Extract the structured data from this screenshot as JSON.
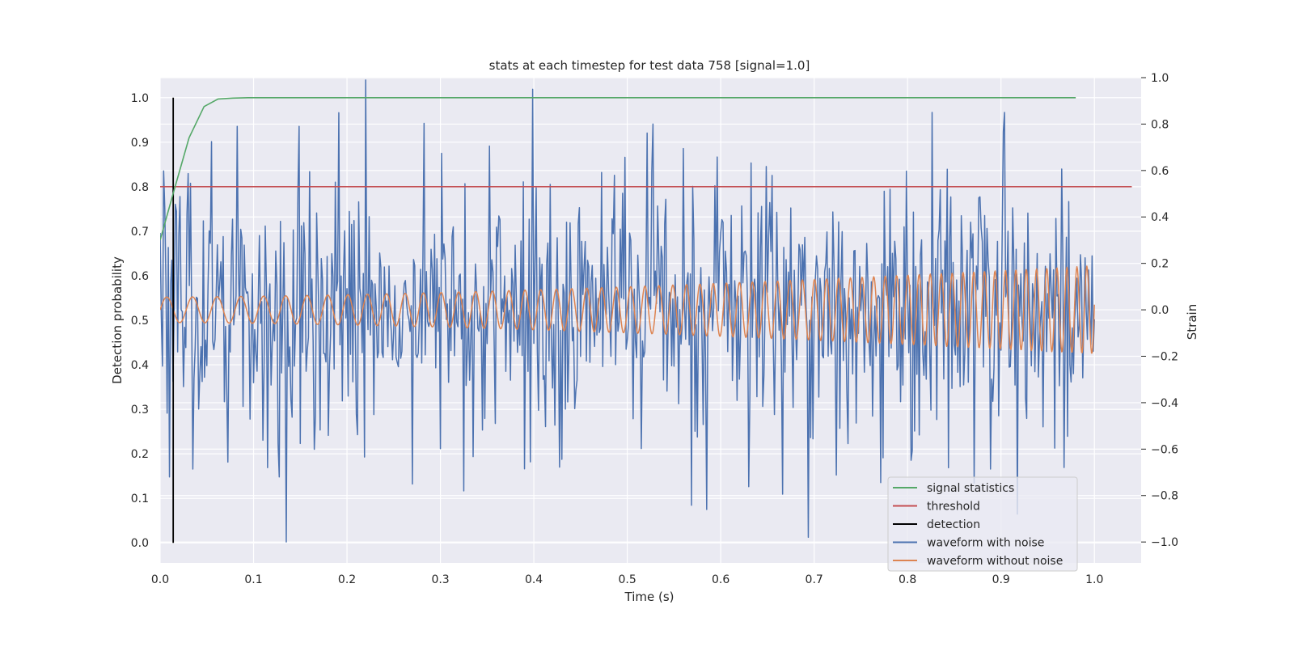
{
  "chart_data": {
    "type": "line",
    "title": "stats at each timestep for test data 758 [signal=1.0]",
    "xlabel": "Time (s)",
    "ylabel_left": "Detection probability",
    "ylabel_right": "Strain",
    "xlim": [
      0.0,
      1.05
    ],
    "ylim_left": [
      -0.045,
      1.045
    ],
    "ylim_right": [
      -1.09,
      1.0
    ],
    "x_ticks": [
      "0.0",
      "0.1",
      "0.2",
      "0.3",
      "0.4",
      "0.5",
      "0.6",
      "0.7",
      "0.8",
      "0.9",
      "1.0"
    ],
    "y_left_ticks": [
      "0.0",
      "0.1",
      "0.2",
      "0.3",
      "0.4",
      "0.5",
      "0.6",
      "0.7",
      "0.8",
      "0.9",
      "1.0"
    ],
    "y_right_ticks": [
      "−1.0",
      "−0.8",
      "−0.6",
      "−0.4",
      "−0.2",
      "0.0",
      "0.2",
      "0.4",
      "0.6",
      "0.8",
      "1.0"
    ],
    "grid": true,
    "legend_position": "lower-right",
    "series": [
      {
        "name": "signal statistics",
        "axis": "left",
        "color": "#55a868",
        "x": [
          0.0,
          0.016,
          0.031,
          0.047,
          0.062,
          0.078,
          0.094,
          0.125,
          0.2,
          0.5,
          0.98
        ],
        "y": [
          0.68,
          0.8,
          0.91,
          0.98,
          0.997,
          0.999,
          1.0,
          1.0,
          1.0,
          1.0,
          1.0
        ]
      },
      {
        "name": "threshold",
        "axis": "left",
        "color": "#c44e52",
        "x": [
          0.0,
          1.04
        ],
        "y": [
          0.8,
          0.8
        ]
      },
      {
        "name": "detection",
        "axis": "left",
        "color": "#000000",
        "x": [
          0.014,
          0.014
        ],
        "y": [
          0.0,
          1.0
        ]
      },
      {
        "name": "waveform with noise",
        "axis": "right",
        "color": "#4c72b0",
        "x_range": [
          0.0,
          1.0
        ],
        "x_step": 0.00125,
        "approx_std": 0.3,
        "peaks": [
          {
            "x": 0.22,
            "y": 0.99
          },
          {
            "x": 0.135,
            "y": -1.0
          },
          {
            "x": 0.083,
            "y": 0.79
          },
          {
            "x": 0.149,
            "y": 0.79
          },
          {
            "x": 0.527,
            "y": 0.8
          },
          {
            "x": 0.826,
            "y": 0.85
          },
          {
            "x": 0.904,
            "y": 0.85
          },
          {
            "x": 0.694,
            "y": -0.98
          },
          {
            "x": 0.585,
            "y": -0.86
          },
          {
            "x": 0.918,
            "y": -0.88
          },
          {
            "x": 0.325,
            "y": -0.78
          },
          {
            "x": 0.01,
            "y": -0.72
          }
        ]
      },
      {
        "name": "waveform without noise",
        "axis": "right",
        "color": "#dd8452",
        "x_range": [
          0.0,
          1.0
        ],
        "amplitude_start": 0.055,
        "amplitude_end": 0.19,
        "frequency_start_hz": 35,
        "frequency_end_hz": 95
      }
    ]
  }
}
